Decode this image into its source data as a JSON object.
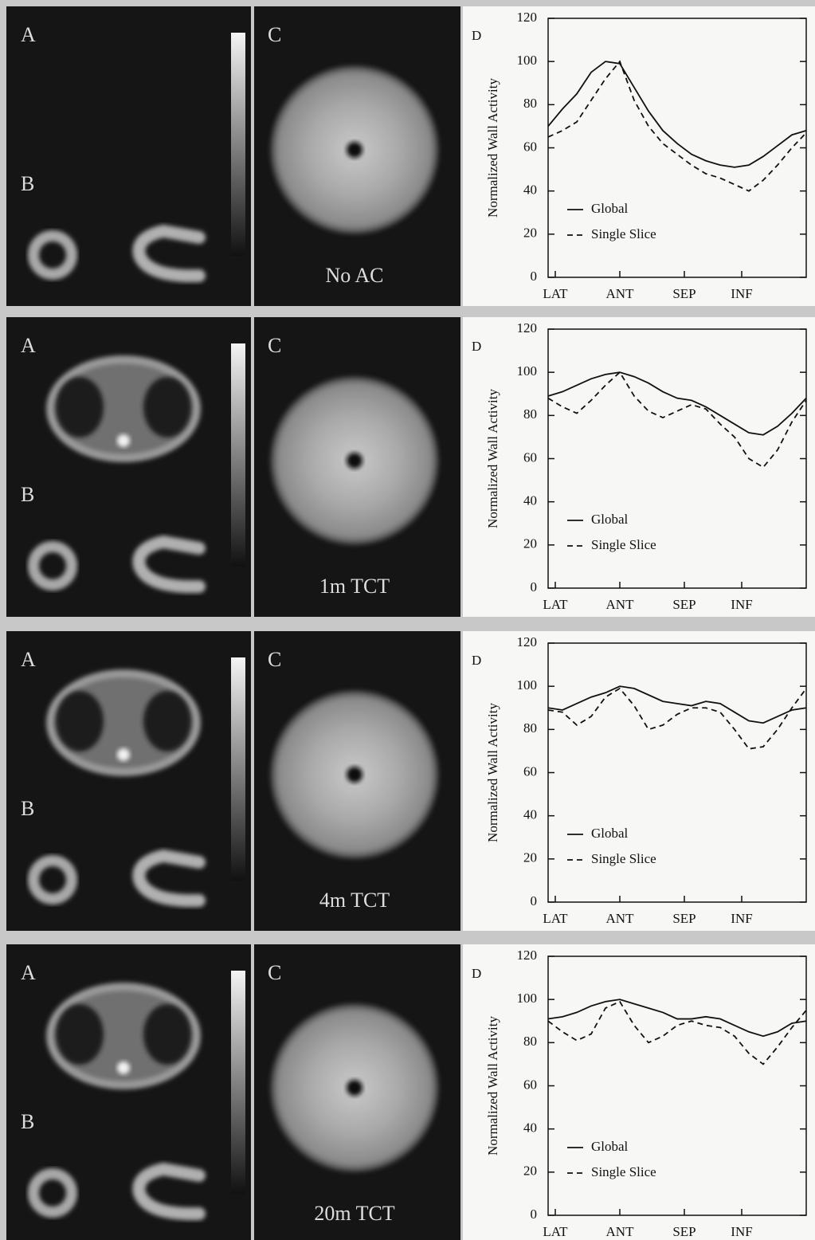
{
  "image_panels": [
    {
      "label_a": "A",
      "label_b": "B",
      "label_c": "C",
      "caption": "No AC"
    },
    {
      "label_a": "A",
      "label_b": "B",
      "label_c": "C",
      "caption": "1m TCT"
    },
    {
      "label_a": "A",
      "label_b": "B",
      "label_c": "C",
      "caption": "4m TCT"
    },
    {
      "label_a": "A",
      "label_b": "B",
      "label_c": "C",
      "caption": "20m TCT"
    }
  ],
  "chart_data": [
    {
      "type": "line",
      "panel_label": "D",
      "ylabel": "Normalized Wall Activity",
      "x": [
        0,
        20,
        40,
        60,
        80,
        100,
        120,
        140,
        160,
        180,
        200,
        220,
        240,
        260,
        280,
        300,
        320,
        340,
        360
      ],
      "xlim": [
        0,
        360
      ],
      "ylim": [
        0,
        120
      ],
      "yticks": [
        0,
        20,
        40,
        60,
        80,
        100,
        120
      ],
      "xticks": [
        {
          "value": 10,
          "label": "LAT"
        },
        {
          "value": 100,
          "label": "ANT"
        },
        {
          "value": 190,
          "label": "SEP"
        },
        {
          "value": 270,
          "label": "INF"
        }
      ],
      "series": [
        {
          "name": "Global",
          "color": "#111111",
          "line_style": "solid",
          "values": [
            70,
            78,
            85,
            95,
            100,
            99,
            88,
            77,
            68,
            62,
            57,
            54,
            52,
            51,
            52,
            56,
            61,
            66,
            68
          ]
        },
        {
          "name": "Single Slice",
          "color": "#111111",
          "line_style": "dashed",
          "values": [
            65,
            68,
            72,
            82,
            92,
            100,
            82,
            70,
            62,
            57,
            52,
            48,
            46,
            43,
            40,
            45,
            52,
            60,
            67
          ]
        }
      ]
    },
    {
      "type": "line",
      "panel_label": "D",
      "ylabel": "Normalized Wall Activity",
      "x": [
        0,
        20,
        40,
        60,
        80,
        100,
        120,
        140,
        160,
        180,
        200,
        220,
        240,
        260,
        280,
        300,
        320,
        340,
        360
      ],
      "xlim": [
        0,
        360
      ],
      "ylim": [
        0,
        120
      ],
      "yticks": [
        0,
        20,
        40,
        60,
        80,
        100,
        120
      ],
      "xticks": [
        {
          "value": 10,
          "label": "LAT"
        },
        {
          "value": 100,
          "label": "ANT"
        },
        {
          "value": 190,
          "label": "SEP"
        },
        {
          "value": 270,
          "label": "INF"
        }
      ],
      "series": [
        {
          "name": "Global",
          "color": "#111111",
          "line_style": "solid",
          "values": [
            89,
            91,
            94,
            97,
            99,
            100,
            98,
            95,
            91,
            88,
            87,
            84,
            80,
            76,
            72,
            71,
            75,
            81,
            88
          ]
        },
        {
          "name": "Single Slice",
          "color": "#111111",
          "line_style": "dashed",
          "values": [
            88,
            84,
            81,
            87,
            94,
            100,
            89,
            82,
            79,
            82,
            85,
            83,
            76,
            70,
            60,
            56,
            64,
            77,
            87
          ]
        }
      ]
    },
    {
      "type": "line",
      "panel_label": "D",
      "ylabel": "Normalized Wall Activity",
      "x": [
        0,
        20,
        40,
        60,
        80,
        100,
        120,
        140,
        160,
        180,
        200,
        220,
        240,
        260,
        280,
        300,
        320,
        340,
        360
      ],
      "xlim": [
        0,
        360
      ],
      "ylim": [
        0,
        120
      ],
      "yticks": [
        0,
        20,
        40,
        60,
        80,
        100,
        120
      ],
      "xticks": [
        {
          "value": 10,
          "label": "LAT"
        },
        {
          "value": 100,
          "label": "ANT"
        },
        {
          "value": 190,
          "label": "SEP"
        },
        {
          "value": 270,
          "label": "INF"
        }
      ],
      "series": [
        {
          "name": "Global",
          "color": "#111111",
          "line_style": "solid",
          "values": [
            90,
            89,
            92,
            95,
            97,
            100,
            99,
            96,
            93,
            92,
            91,
            93,
            92,
            88,
            84,
            83,
            86,
            89,
            90
          ]
        },
        {
          "name": "Single Slice",
          "color": "#111111",
          "line_style": "dashed",
          "values": [
            89,
            88,
            82,
            86,
            95,
            99,
            91,
            80,
            82,
            87,
            90,
            90,
            88,
            80,
            71,
            72,
            80,
            90,
            99
          ]
        }
      ]
    },
    {
      "type": "line",
      "panel_label": "D",
      "ylabel": "Normalized Wall Activity",
      "x": [
        0,
        20,
        40,
        60,
        80,
        100,
        120,
        140,
        160,
        180,
        200,
        220,
        240,
        260,
        280,
        300,
        320,
        340,
        360
      ],
      "xlim": [
        0,
        360
      ],
      "ylim": [
        0,
        120
      ],
      "yticks": [
        0,
        20,
        40,
        60,
        80,
        100,
        120
      ],
      "xticks": [
        {
          "value": 10,
          "label": "LAT"
        },
        {
          "value": 100,
          "label": "ANT"
        },
        {
          "value": 190,
          "label": "SEP"
        },
        {
          "value": 270,
          "label": "INF"
        }
      ],
      "series": [
        {
          "name": "Global",
          "color": "#111111",
          "line_style": "solid",
          "values": [
            91,
            92,
            94,
            97,
            99,
            100,
            98,
            96,
            94,
            91,
            91,
            92,
            91,
            88,
            85,
            83,
            85,
            89,
            90
          ]
        },
        {
          "name": "Single Slice",
          "color": "#111111",
          "line_style": "dashed",
          "values": [
            90,
            85,
            81,
            84,
            96,
            99,
            88,
            80,
            83,
            88,
            90,
            88,
            87,
            83,
            75,
            70,
            78,
            87,
            95
          ]
        }
      ]
    }
  ]
}
